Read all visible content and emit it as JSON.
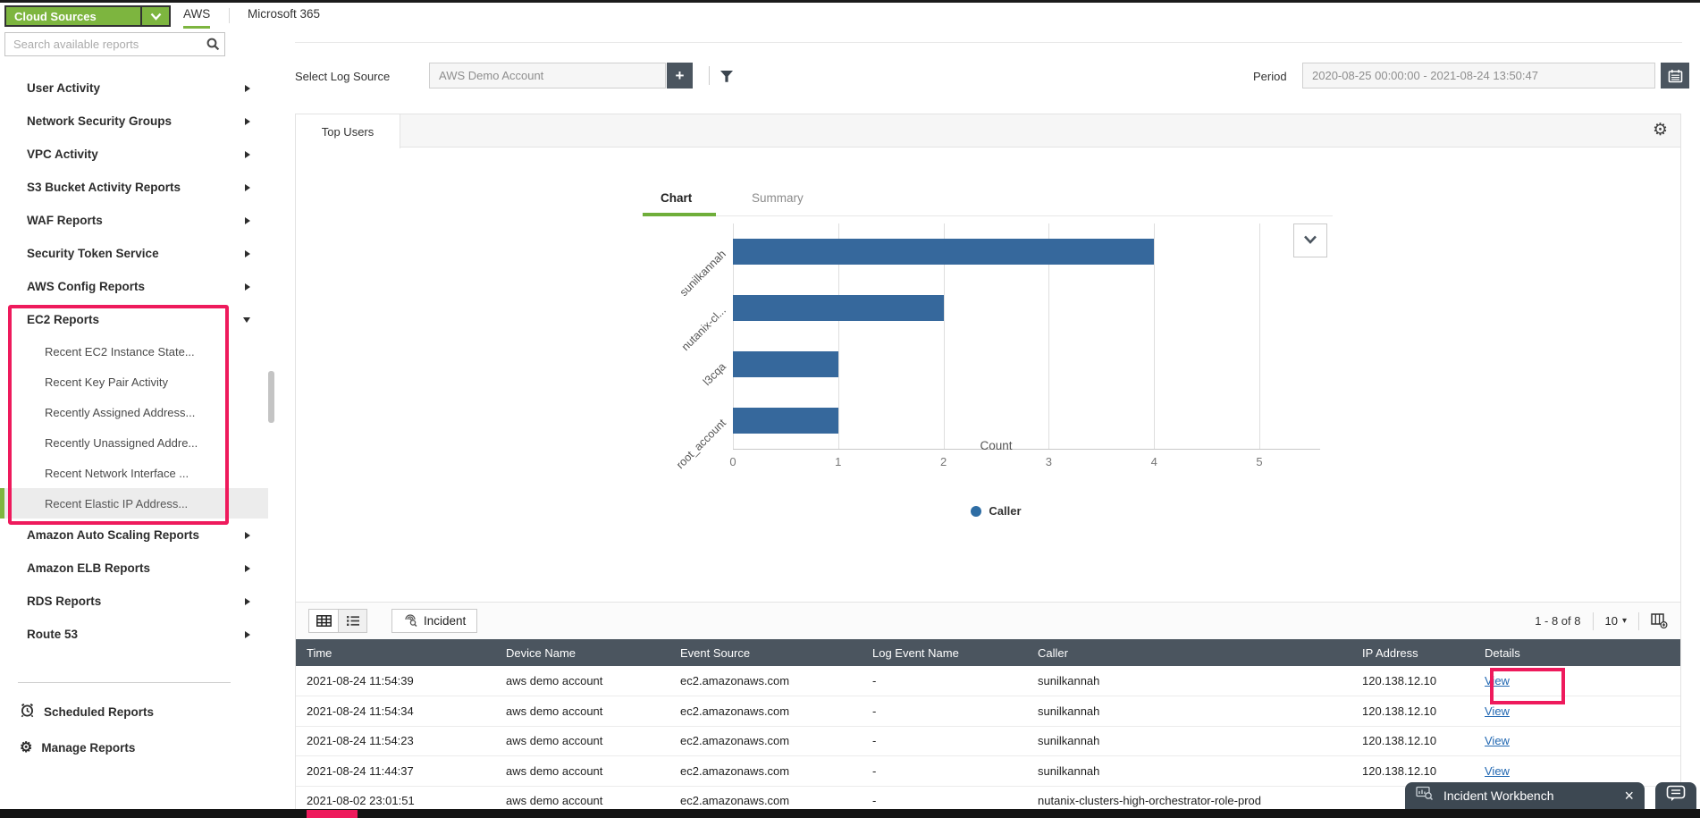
{
  "topbar": {
    "source_selector_label": "Cloud Sources",
    "tabs": [
      {
        "label": "AWS",
        "active": true
      },
      {
        "label": "Microsoft 365",
        "active": false
      }
    ]
  },
  "sidebar": {
    "search_placeholder": "Search available reports",
    "items": [
      {
        "label": "User Activity"
      },
      {
        "label": "Network Security Groups"
      },
      {
        "label": "VPC Activity"
      },
      {
        "label": "S3 Bucket Activity Reports"
      },
      {
        "label": "WAF Reports"
      },
      {
        "label": "Security Token Service"
      },
      {
        "label": "AWS Config Reports"
      },
      {
        "label": "EC2 Reports",
        "expanded": true,
        "children": [
          {
            "label": "Recent EC2 Instance State..."
          },
          {
            "label": "Recent Key Pair Activity"
          },
          {
            "label": "Recently Assigned Address..."
          },
          {
            "label": "Recently Unassigned Addre..."
          },
          {
            "label": "Recent Network Interface ..."
          },
          {
            "label": "Recent Elastic IP Address...",
            "selected": true
          }
        ]
      },
      {
        "label": "Amazon Auto Scaling Reports"
      },
      {
        "label": "Amazon ELB Reports"
      },
      {
        "label": "RDS Reports"
      },
      {
        "label": "Route 53"
      }
    ],
    "footer_items": [
      {
        "label": "Scheduled Reports",
        "icon": "alarm-clock-icon"
      },
      {
        "label": "Manage Reports",
        "icon": "gear-icon"
      }
    ]
  },
  "filters": {
    "log_source_label": "Select Log Source",
    "log_source_value": "AWS Demo Account",
    "add_button_label": "+",
    "period_label": "Period",
    "period_value": "2020-08-25 00:00:00 - 2021-08-24 13:50:47"
  },
  "report": {
    "tab_label": "Top Users",
    "view_tabs": [
      {
        "label": "Chart",
        "active": true
      },
      {
        "label": "Summary",
        "active": false
      }
    ]
  },
  "chart_data": {
    "type": "bar",
    "orientation": "horizontal",
    "title": "Top Users",
    "categories": [
      "sunilkannah",
      "nutanix-cl...",
      "l3cqa",
      "root_account"
    ],
    "values": [
      4,
      2,
      1,
      1
    ],
    "series_name": "Caller",
    "xlabel": "Count",
    "ylabel": "",
    "xlim": [
      0,
      5
    ],
    "xticks": [
      0,
      1,
      2,
      3,
      4,
      5
    ],
    "grid": true,
    "legend_position": "bottom",
    "bar_color": "#36689c",
    "legend_dot_color": "#2e6da4"
  },
  "table": {
    "incident_button_label": "Incident",
    "pagination": "1 - 8 of 8",
    "page_size": "10",
    "columns": [
      "Time",
      "Device Name",
      "Event Source",
      "Log Event Name",
      "Caller",
      "IP Address",
      "Details"
    ],
    "rows": [
      {
        "time": "2021-08-24 11:54:39",
        "device": "aws demo account",
        "event_source": "ec2.amazonaws.com",
        "log_event_name": "-",
        "caller": "sunilkannah",
        "ip": "120.138.12.10",
        "details": "View"
      },
      {
        "time": "2021-08-24 11:54:34",
        "device": "aws demo account",
        "event_source": "ec2.amazonaws.com",
        "log_event_name": "-",
        "caller": "sunilkannah",
        "ip": "120.138.12.10",
        "details": "View"
      },
      {
        "time": "2021-08-24 11:54:23",
        "device": "aws demo account",
        "event_source": "ec2.amazonaws.com",
        "log_event_name": "-",
        "caller": "sunilkannah",
        "ip": "120.138.12.10",
        "details": "View"
      },
      {
        "time": "2021-08-24 11:44:37",
        "device": "aws demo account",
        "event_source": "ec2.amazonaws.com",
        "log_event_name": "-",
        "caller": "sunilkannah",
        "ip": "120.138.12.10",
        "details": "View"
      },
      {
        "time": "2021-08-02 23:01:51",
        "device": "aws demo account",
        "event_source": "ec2.amazonaws.com",
        "log_event_name": "-",
        "caller": "nutanix-clusters-high-orchestrator-role-prod",
        "ip": "",
        "details": ""
      }
    ]
  },
  "workbench": {
    "title": "Incident Workbench"
  },
  "icons": {
    "gear-glyph": "⚙",
    "caret-glyph": "▾",
    "close-glyph": "×"
  },
  "colors": {
    "accent_green": "#7db53f",
    "annotation_red": "#ee1a5c",
    "header_slate": "#4b555f",
    "link_blue": "#2268b2",
    "bar_blue": "#36689c"
  }
}
